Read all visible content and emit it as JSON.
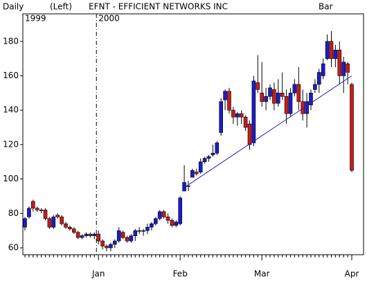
{
  "chart_data": {
    "type": "candlestick",
    "header": [
      "Daily",
      "(Left)",
      "EFNT - EFFICIENT NETWORKS INC",
      "Bar"
    ],
    "year_labels": [
      {
        "label": "1999",
        "index": 0
      },
      {
        "label": "2000",
        "index": 18
      }
    ],
    "categories": [
      null,
      null,
      null,
      null,
      null,
      null,
      null,
      null,
      null,
      null,
      null,
      null,
      null,
      null,
      null,
      null,
      null,
      null,
      "Jan",
      null,
      null,
      null,
      null,
      null,
      null,
      null,
      null,
      null,
      null,
      null,
      null,
      null,
      null,
      null,
      null,
      null,
      null,
      null,
      "Feb",
      null,
      null,
      null,
      null,
      null,
      null,
      null,
      null,
      null,
      null,
      null,
      null,
      null,
      null,
      null,
      null,
      null,
      null,
      null,
      "Mar",
      null,
      null,
      null,
      null,
      null,
      null,
      null,
      null,
      null,
      null,
      null,
      null,
      null,
      null,
      null,
      null,
      null,
      null,
      null,
      null,
      null,
      "Apr"
    ],
    "up_color": "#1c1cc8",
    "down_color": "#c81c1c",
    "open": [
      72,
      78,
      87,
      83,
      82,
      82,
      77,
      72,
      79,
      78,
      74,
      72,
      71,
      69,
      66,
      67,
      68,
      67,
      68,
      64,
      61,
      60,
      62,
      64,
      69,
      66,
      64,
      67,
      70,
      70,
      70,
      72,
      74,
      77,
      81,
      78,
      76,
      73,
      74,
      93,
      96,
      101,
      104,
      104,
      110,
      112,
      114,
      115,
      127,
      146,
      151,
      140,
      136,
      138,
      136,
      132,
      121,
      156,
      150,
      145,
      148,
      152,
      144,
      150,
      148,
      138,
      150,
      155,
      145,
      138,
      143,
      152,
      155,
      160,
      170,
      180,
      170,
      175,
      160,
      167,
      155
    ],
    "high": [
      78,
      84,
      88,
      84,
      83,
      83,
      78,
      79,
      80,
      79,
      75,
      73,
      72,
      70,
      68,
      69,
      69,
      69,
      70,
      65,
      62,
      63,
      65,
      72,
      70,
      67,
      68,
      71,
      72,
      71,
      74,
      75,
      78,
      82,
      82,
      80,
      77,
      76,
      90,
      108,
      99,
      106,
      106,
      112,
      113,
      114,
      120,
      122,
      147,
      152,
      153,
      142,
      139,
      140,
      137,
      134,
      160,
      172,
      168,
      153,
      155,
      156,
      158,
      162,
      152,
      153,
      158,
      165,
      152,
      150,
      152,
      158,
      164,
      170,
      184,
      186,
      178,
      180,
      171,
      168,
      156
    ],
    "low": [
      70,
      77,
      81,
      81,
      80,
      76,
      71,
      71,
      77,
      73,
      71,
      70,
      68,
      65,
      65,
      66,
      66,
      65,
      62,
      59,
      58,
      58,
      60,
      63,
      65,
      63,
      63,
      64,
      68,
      67,
      68,
      70,
      73,
      76,
      77,
      74,
      72,
      72,
      73,
      93,
      93,
      101,
      102,
      103,
      109,
      110,
      113,
      114,
      125,
      140,
      138,
      132,
      131,
      132,
      128,
      117,
      119,
      150,
      142,
      140,
      146,
      140,
      142,
      146,
      132,
      136,
      148,
      140,
      134,
      130,
      140,
      150,
      150,
      158,
      169,
      165,
      165,
      155,
      150,
      155,
      104
    ],
    "close": [
      77,
      83,
      83,
      82,
      82,
      77,
      72,
      78,
      78,
      74,
      72,
      71,
      69,
      66,
      67,
      68,
      67,
      68,
      64,
      61,
      60,
      62,
      64,
      70,
      66,
      64,
      67,
      70,
      70,
      70,
      72,
      74,
      77,
      81,
      78,
      76,
      73,
      75,
      89,
      98,
      96,
      105,
      103,
      110,
      112,
      113,
      115,
      121,
      145,
      151,
      140,
      136,
      138,
      136,
      130,
      120,
      157,
      152,
      145,
      148,
      153,
      144,
      150,
      148,
      138,
      150,
      155,
      145,
      138,
      145,
      150,
      155,
      162,
      167,
      180,
      170,
      175,
      160,
      168,
      162,
      105
    ],
    "trendline": {
      "color": "#1c1cc8",
      "x": [
        39,
        80
      ],
      "values": [
        95,
        160
      ]
    },
    "ylim": [
      56,
      196
    ],
    "yticks": [
      60,
      80,
      100,
      120,
      140,
      160,
      180
    ]
  }
}
